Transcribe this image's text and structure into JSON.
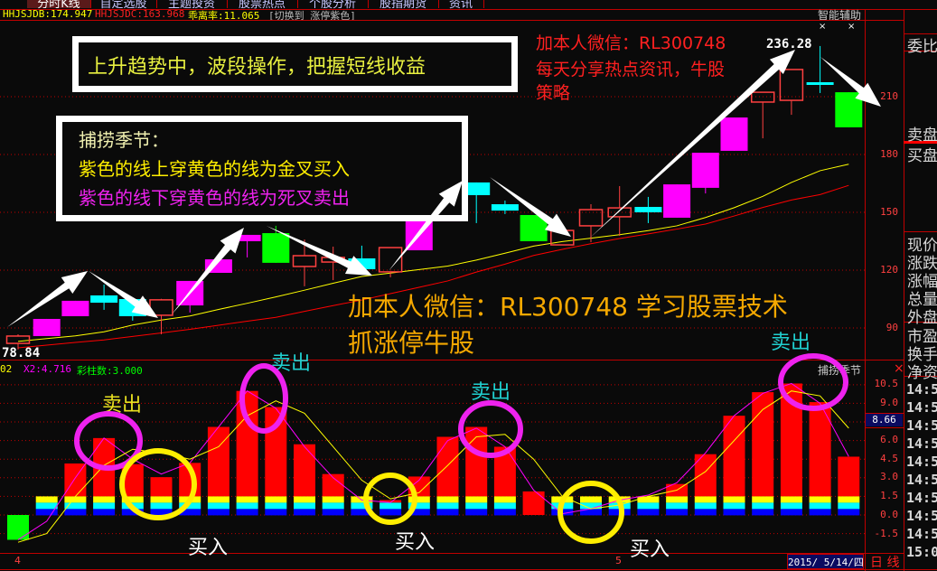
{
  "tabs": [
    "分时K线",
    "自定选股",
    "主题投资",
    "股票热点",
    "个股分析",
    "股指期货",
    "资讯"
  ],
  "header": {
    "ma1": "HHJSJDB:174.947",
    "ma2": "HHJSJDC:163.968",
    "bias": "乖离率:11.065",
    "switch": "[切换到 涨停紫色]",
    "assist": "智能辅助",
    "close_marks": [
      "×",
      "×"
    ]
  },
  "price_axis": [
    "210",
    "180",
    "150",
    "120",
    "90"
  ],
  "price_labels": {
    "high": "236.28",
    "low": "78.84"
  },
  "indicator": {
    "series1_partial": "02",
    "x2": "X2:4.716",
    "bars_count": "彩柱数:3.000",
    "name": "捕捞季节",
    "close": "×",
    "axis": [
      "10.5",
      "9.0",
      "6.0",
      "4.5",
      "3.0",
      "1.5",
      "0.0",
      "-1.5"
    ],
    "current": "8.66"
  },
  "bottom": {
    "tick1": "4",
    "tick2": "5",
    "date": "2015/ 5/14/四",
    "period": "日 线"
  },
  "right_panel": {
    "labels": [
      "委比",
      "卖盘",
      "买盘",
      "现价",
      "涨跌",
      "涨幅",
      "总量",
      "外盘",
      "市盈",
      "换手",
      "净资"
    ],
    "times": [
      "14:5",
      "14:5",
      "14:5",
      "14:5",
      "14:5",
      "14:5",
      "14:5",
      "14:5",
      "14:5",
      "14:5",
      "15:0"
    ]
  },
  "annotations": {
    "box1": "上升趋势中，波段操作，把握短线收益",
    "box2_title": "捕捞季节：",
    "box2_line1": "紫色的线上穿黄色的线为金叉买入",
    "box2_line2": "紫色的线下穿黄色的线为死叉卖出",
    "red1": "加本人微信：RL300748",
    "red2": "每天分享热点资讯，牛股",
    "red3": "策略",
    "orange1": "加本人微信：RL300748 学习股票技术",
    "orange2": "抓涨停牛股",
    "sell": "卖出",
    "buy": "买入"
  },
  "chart_data": [
    {
      "type": "candlestick",
      "ylim": [
        70,
        245
      ],
      "yticks": [
        90,
        120,
        150,
        180,
        210
      ],
      "grid": true,
      "candles": [
        {
          "o": 82.0,
          "h": 86.7,
          "l": 78.84,
          "c": 85.8,
          "color": "red-hollow"
        },
        {
          "o": 85.8,
          "h": 94.7,
          "l": 85.8,
          "c": 94.7,
          "color": "magenta"
        },
        {
          "o": 96.1,
          "h": 104.1,
          "l": 96.1,
          "c": 104.1,
          "color": "magenta"
        },
        {
          "o": 106.9,
          "h": 112.5,
          "l": 99.4,
          "c": 103.1,
          "color": "cyan"
        },
        {
          "o": 105.0,
          "h": 105.0,
          "l": 93.8,
          "c": 96.1,
          "color": "cyan"
        },
        {
          "o": 96.6,
          "h": 105.1,
          "l": 86.7,
          "c": 104.6,
          "color": "red-hollow"
        },
        {
          "o": 101.7,
          "h": 114.4,
          "l": 98.0,
          "c": 114.4,
          "color": "magenta"
        },
        {
          "o": 118.6,
          "h": 125.6,
          "l": 118.6,
          "c": 125.6,
          "color": "magenta"
        },
        {
          "o": 135.0,
          "h": 138.3,
          "l": 126.6,
          "c": 138.3,
          "color": "magenta"
        },
        {
          "o": 139.2,
          "h": 143.0,
          "l": 123.8,
          "c": 123.8,
          "color": "green"
        },
        {
          "o": 121.9,
          "h": 135.9,
          "l": 111.6,
          "c": 127.5,
          "color": "red-hollow"
        },
        {
          "o": 124.2,
          "h": 132.2,
          "l": 114.8,
          "c": 126.6,
          "color": "red-hollow"
        },
        {
          "o": 126.1,
          "h": 132.7,
          "l": 120.5,
          "c": 120.5,
          "color": "cyan"
        },
        {
          "o": 119.1,
          "h": 131.7,
          "l": 116.3,
          "c": 131.7,
          "color": "red-hollow"
        },
        {
          "o": 130.3,
          "h": 156.1,
          "l": 130.3,
          "c": 156.1,
          "color": "magenta"
        },
        {
          "o": 145.3,
          "h": 166.4,
          "l": 145.3,
          "c": 166.4,
          "color": "magenta"
        },
        {
          "o": 165.5,
          "h": 165.5,
          "l": 144.4,
          "c": 158.9,
          "color": "cyan"
        },
        {
          "o": 154.2,
          "h": 156.1,
          "l": 149.1,
          "c": 150.9,
          "color": "cyan"
        },
        {
          "o": 148.6,
          "h": 148.6,
          "l": 135.0,
          "c": 135.0,
          "color": "green"
        },
        {
          "o": 133.1,
          "h": 140.6,
          "l": 133.0,
          "c": 140.6,
          "color": "red-hollow"
        },
        {
          "o": 143.0,
          "h": 154.2,
          "l": 134.5,
          "c": 151.4,
          "color": "red-hollow"
        },
        {
          "o": 147.7,
          "h": 163.6,
          "l": 137.8,
          "c": 152.3,
          "color": "red-hollow"
        },
        {
          "o": 152.8,
          "h": 158.0,
          "l": 144.4,
          "c": 150.0,
          "color": "cyan"
        },
        {
          "o": 147.2,
          "h": 164.5,
          "l": 147.2,
          "c": 164.5,
          "color": "magenta"
        },
        {
          "o": 162.7,
          "h": 180.9,
          "l": 159.8,
          "c": 180.9,
          "color": "magenta"
        },
        {
          "o": 181.9,
          "h": 199.2,
          "l": 181.9,
          "c": 199.2,
          "color": "magenta"
        },
        {
          "o": 207.2,
          "h": 212.3,
          "l": 188.4,
          "c": 212.3,
          "color": "red-hollow"
        },
        {
          "o": 208.1,
          "h": 224.1,
          "l": 200.6,
          "c": 224.1,
          "color": "red-hollow"
        },
        {
          "o": 217.5,
          "h": 236.28,
          "l": 211.9,
          "c": 216.1,
          "color": "cyan"
        },
        {
          "o": 212.3,
          "h": 212.3,
          "l": 194.1,
          "c": 194.1,
          "color": "green"
        }
      ],
      "series": [
        {
          "name": "HHJSJDB",
          "color": "#ffff00",
          "values": [
            83.0,
            84.5,
            85.9,
            88.0,
            91.5,
            94.1,
            96.2,
            99.6,
            102.8,
            106.1,
            109.6,
            113.2,
            116.7,
            118.5,
            120.3,
            122.1,
            125.2,
            128.8,
            132.5,
            134.8,
            136.6,
            138.4,
            140.5,
            143.0,
            147.3,
            152.4,
            158.3,
            165.5,
            171.6,
            174.947
          ]
        },
        {
          "name": "HHJSJDC",
          "color": "#ff0000",
          "values": [
            79.7,
            81.1,
            82.5,
            83.8,
            85.6,
            87.4,
            89.3,
            91.4,
            93.5,
            95.5,
            98.6,
            101.6,
            104.5,
            107.8,
            111.1,
            114.4,
            119.0,
            123.1,
            127.6,
            130.8,
            133.7,
            136.4,
            138.8,
            141.3,
            143.9,
            148.1,
            152.5,
            156.4,
            159.2,
            163.968
          ]
        }
      ]
    },
    {
      "type": "bar",
      "title": "捕捞季节",
      "ylim": [
        -2.2,
        11.5
      ],
      "yticks": [
        -1.5,
        0.0,
        1.5,
        3.0,
        4.5,
        6.0,
        9.0,
        10.5
      ],
      "grid": true,
      "bars": [
        {
          "v": -2.0,
          "base": "none"
        },
        {
          "v": 1.5,
          "base": "full"
        },
        {
          "v": 4.15,
          "base": "full"
        },
        {
          "v": 6.2,
          "base": "full"
        },
        {
          "v": 4.1,
          "base": "full"
        },
        {
          "v": 3.05,
          "base": "full"
        },
        {
          "v": 4.2,
          "base": "full"
        },
        {
          "v": 7.1,
          "base": "full"
        },
        {
          "v": 10.0,
          "base": "full"
        },
        {
          "v": 8.7,
          "base": "full"
        },
        {
          "v": 5.7,
          "base": "full"
        },
        {
          "v": 3.3,
          "base": "full"
        },
        {
          "v": 1.5,
          "base": "full"
        },
        {
          "v": 1.2,
          "base": "partial"
        },
        {
          "v": 3.1,
          "base": "full"
        },
        {
          "v": 6.3,
          "base": "full"
        },
        {
          "v": 7.1,
          "base": "full"
        },
        {
          "v": 5.5,
          "base": "full"
        },
        {
          "v": 1.9,
          "base": "none"
        },
        {
          "v": 1.5,
          "base": "full"
        },
        {
          "v": 1.5,
          "base": "full"
        },
        {
          "v": 1.5,
          "base": "full"
        },
        {
          "v": 1.5,
          "base": "full"
        },
        {
          "v": 2.5,
          "base": "full"
        },
        {
          "v": 4.9,
          "base": "full"
        },
        {
          "v": 8.0,
          "base": "full"
        },
        {
          "v": 9.9,
          "base": "full"
        },
        {
          "v": 10.6,
          "base": "full"
        },
        {
          "v": 9.1,
          "base": "full"
        },
        {
          "v": 4.7,
          "base": "full"
        }
      ],
      "series": [
        {
          "name": "X2",
          "color": "#ff00ff",
          "values": [
            -2.0,
            -0.5,
            3.0,
            6.2,
            4.5,
            3.3,
            4.2,
            7.1,
            10.0,
            8.6,
            5.5,
            3.0,
            1.2,
            1.0,
            2.8,
            6.0,
            7.0,
            5.5,
            2.0,
            0.1,
            0.5,
            1.2,
            1.6,
            2.6,
            5.0,
            8.0,
            9.8,
            10.6,
            9.0,
            4.716
          ]
        },
        {
          "color": "#ffff00",
          "values": [
            -2.2,
            -1.5,
            1.5,
            4.0,
            5.3,
            5.0,
            4.5,
            5.5,
            8.0,
            9.2,
            8.2,
            5.5,
            2.8,
            1.3,
            1.8,
            4.0,
            6.3,
            6.5,
            4.5,
            1.5,
            0.5,
            0.8,
            1.5,
            2.0,
            3.5,
            6.0,
            8.5,
            10.0,
            9.6,
            7.0
          ]
        }
      ]
    }
  ],
  "colors": {
    "border": "#c00000",
    "up_fill": "#ff00ff",
    "hollow": "#ff4040",
    "cyan": "#00ffff",
    "green": "#00ff00",
    "orange": "#f5a800"
  }
}
